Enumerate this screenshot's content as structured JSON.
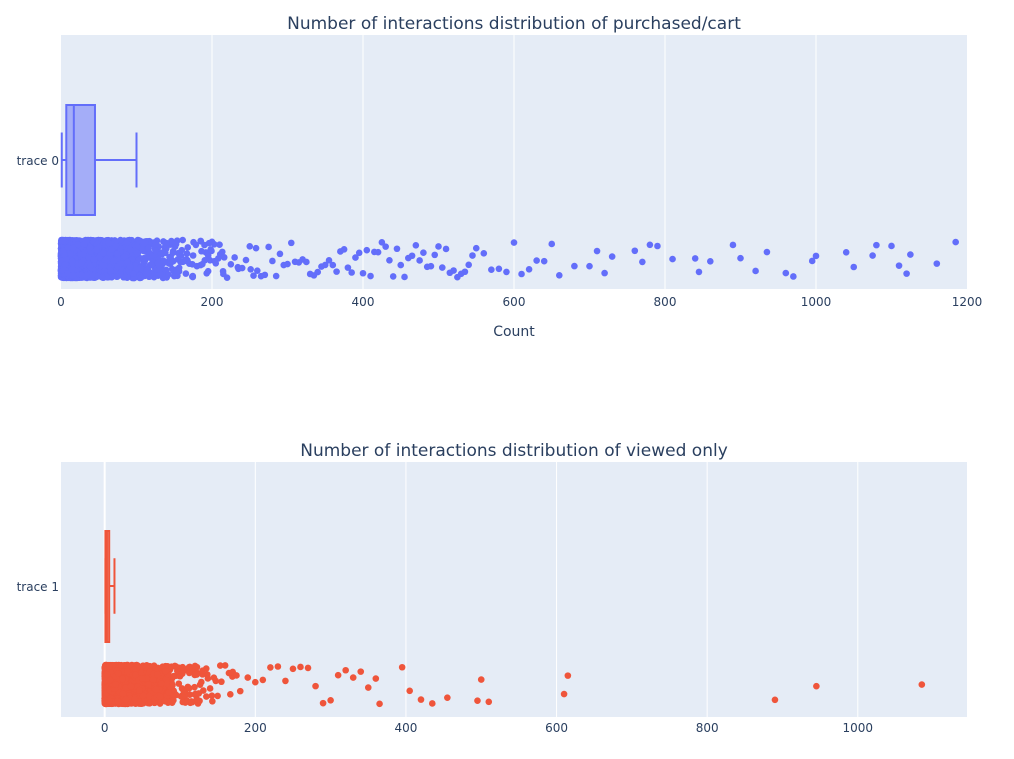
{
  "chart_data": [
    {
      "type": "box",
      "title": "Number of interactions distribution of purchased/cart",
      "xlabel": "Count",
      "xlim": [
        0,
        1200
      ],
      "xticks": [
        "0",
        "200",
        "400",
        "600",
        "800",
        "1000",
        "1200"
      ],
      "xtick_values": [
        0,
        200,
        400,
        600,
        800,
        1000,
        1200
      ],
      "grid": true,
      "series": [
        {
          "name": "trace 0",
          "color": "#636efa",
          "box": {
            "lowerfence": 1,
            "q1": 7,
            "median": 17,
            "q3": 45,
            "upperfence": 100
          },
          "outliers": [
            105,
            110,
            115,
            120,
            125,
            130,
            135,
            140,
            145,
            150,
            155,
            160,
            165,
            170,
            175,
            180,
            185,
            190,
            195,
            200,
            205,
            210,
            215,
            220,
            225,
            230,
            235,
            240,
            245,
            250,
            255,
            260,
            265,
            270,
            275,
            280,
            285,
            290,
            295,
            300,
            305,
            310,
            315,
            320,
            325,
            330,
            335,
            340,
            345,
            350,
            355,
            360,
            365,
            370,
            375,
            380,
            385,
            390,
            395,
            400,
            405,
            410,
            415,
            420,
            425,
            430,
            435,
            440,
            445,
            450,
            455,
            460,
            465,
            470,
            475,
            480,
            485,
            490,
            495,
            500,
            505,
            510,
            515,
            520,
            525,
            530,
            535,
            540,
            545,
            550,
            560,
            570,
            580,
            590,
            600,
            610,
            620,
            630,
            640,
            650,
            660,
            680,
            700,
            710,
            720,
            730,
            760,
            770,
            780,
            790,
            810,
            840,
            845,
            860,
            890,
            900,
            920,
            935,
            960,
            970,
            995,
            1000,
            1040,
            1050,
            1075,
            1080,
            1100,
            1110,
            1120,
            1125,
            1160,
            1185
          ]
        }
      ]
    },
    {
      "type": "box",
      "title": "Number of interactions distribution of viewed only",
      "xlabel": "",
      "xlim": [
        -58,
        1145
      ],
      "xticks": [
        "0",
        "200",
        "400",
        "600",
        "800",
        "1000"
      ],
      "xtick_values": [
        0,
        200,
        400,
        600,
        800,
        1000
      ],
      "grid": true,
      "series": [
        {
          "name": "trace 1",
          "color": "#ef553b",
          "box": {
            "lowerfence": 1,
            "q1": 1,
            "median": 3,
            "q3": 6,
            "upperfence": 13
          },
          "outliers": [
            14,
            18,
            22,
            26,
            30,
            35,
            40,
            45,
            50,
            55,
            60,
            65,
            70,
            75,
            80,
            85,
            90,
            95,
            100,
            105,
            110,
            115,
            120,
            125,
            130,
            135,
            140,
            145,
            150,
            155,
            160,
            165,
            170,
            175,
            180,
            190,
            200,
            210,
            220,
            230,
            240,
            250,
            260,
            270,
            280,
            290,
            300,
            310,
            320,
            330,
            340,
            350,
            360,
            365,
            395,
            405,
            420,
            435,
            455,
            495,
            500,
            510,
            610,
            615,
            890,
            945,
            1085
          ]
        }
      ]
    }
  ]
}
